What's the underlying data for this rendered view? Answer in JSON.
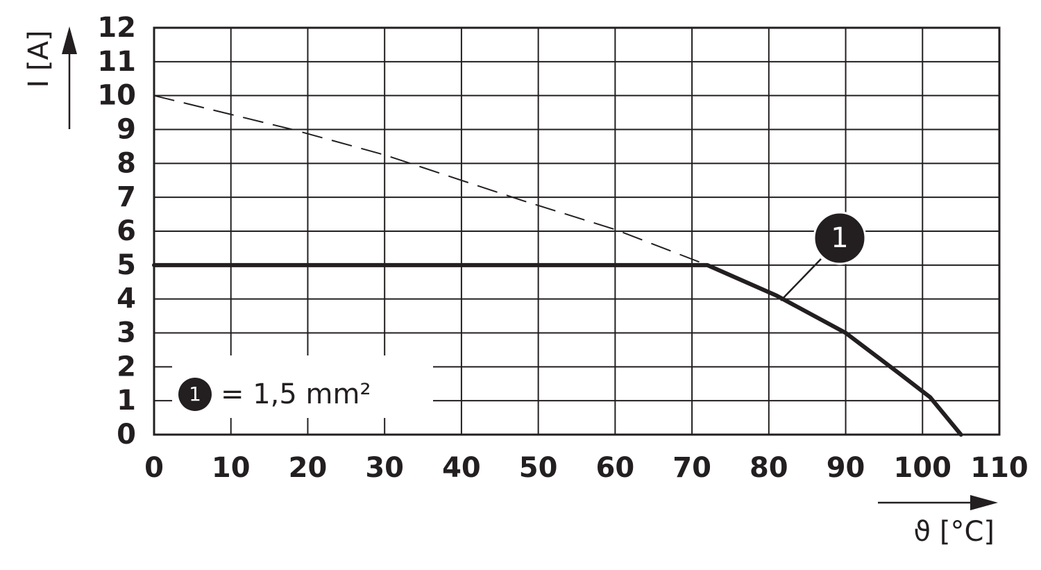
{
  "chart_data": {
    "type": "line",
    "ylabel": "I [A]",
    "xlabel": "ϑ [°C]",
    "xlim": [
      0,
      110
    ],
    "ylim": [
      0,
      12
    ],
    "xticks": [
      0,
      10,
      20,
      30,
      40,
      50,
      60,
      70,
      80,
      90,
      100,
      110
    ],
    "yticks": [
      0,
      1,
      2,
      3,
      4,
      5,
      6,
      7,
      8,
      9,
      10,
      11,
      12
    ],
    "grid": true,
    "series": [
      {
        "name": "1",
        "color": "#231f20",
        "style": "solid",
        "x": [
          0,
          72,
          81,
          90,
          97,
          101,
          105
        ],
        "values": [
          5,
          5,
          4.1,
          3,
          1.8,
          1.1,
          0
        ]
      },
      {
        "color": "#231f20",
        "style": "dashed",
        "x": [
          0,
          18,
          30,
          48,
          60,
          72
        ],
        "values": [
          10,
          9,
          8.25,
          6.9,
          6.05,
          5
        ]
      }
    ],
    "annotation": "1",
    "legend": {
      "marker": "1",
      "text": "= 1,5 mm²"
    }
  }
}
